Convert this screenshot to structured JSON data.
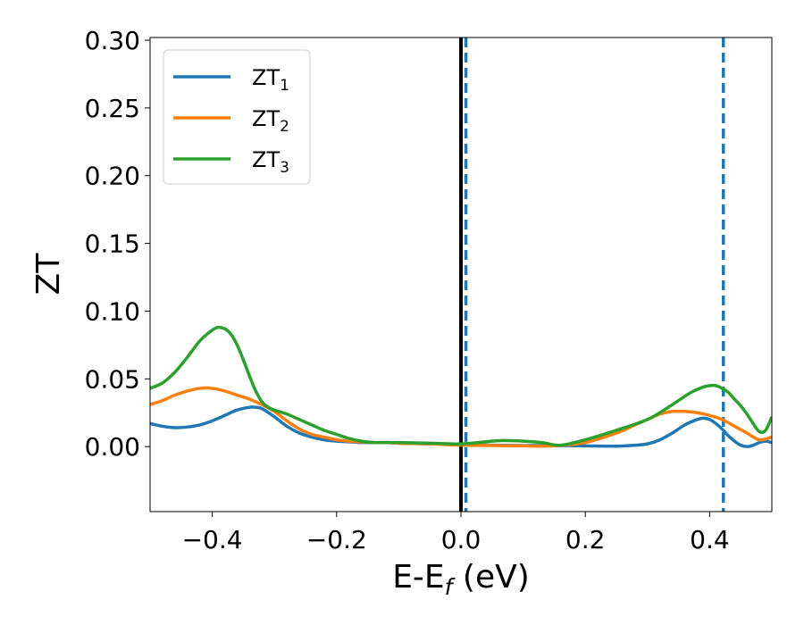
{
  "chart_data": {
    "type": "line",
    "xlabel": "E-E",
    "xlabel_sub": "f",
    "xlabel_unit": " (eV)",
    "ylabel": "ZT",
    "xlim": [
      -0.5,
      0.5
    ],
    "ylim": [
      -0.048,
      0.302
    ],
    "xticks": [
      -0.4,
      -0.2,
      0.0,
      0.2,
      0.4
    ],
    "xtick_labels": [
      "−0.4",
      "−0.2",
      "0.0",
      "0.2",
      "0.4"
    ],
    "yticks": [
      0.0,
      0.05,
      0.1,
      0.15,
      0.2,
      0.25,
      0.3
    ],
    "ytick_labels": [
      "0.00",
      "0.05",
      "0.10",
      "0.15",
      "0.20",
      "0.25",
      "0.30"
    ],
    "legend_position": "top-left",
    "vlines": [
      {
        "x": 0.0,
        "style": "solid",
        "color": "#000000"
      },
      {
        "x": 0.008,
        "style": "dashed",
        "color": "#1f77b4"
      },
      {
        "x": 0.422,
        "style": "dashed",
        "color": "#1f77b4"
      }
    ],
    "series": [
      {
        "name": "ZT",
        "sub": "1",
        "color": "#1f77b4",
        "x": [
          -0.5,
          -0.48,
          -0.46,
          -0.44,
          -0.42,
          -0.4,
          -0.38,
          -0.36,
          -0.34,
          -0.33,
          -0.32,
          -0.3,
          -0.28,
          -0.26,
          -0.24,
          -0.22,
          -0.2,
          -0.18,
          -0.16,
          -0.14,
          -0.12,
          -0.1,
          -0.05,
          0.0,
          0.05,
          0.1,
          0.15,
          0.2,
          0.25,
          0.28,
          0.3,
          0.32,
          0.34,
          0.36,
          0.38,
          0.39,
          0.4,
          0.41,
          0.42,
          0.43,
          0.44,
          0.45,
          0.46,
          0.47,
          0.48,
          0.49,
          0.5
        ],
        "y": [
          0.017,
          0.015,
          0.014,
          0.0145,
          0.016,
          0.019,
          0.023,
          0.027,
          0.029,
          0.029,
          0.028,
          0.022,
          0.015,
          0.01,
          0.007,
          0.005,
          0.004,
          0.0035,
          0.003,
          0.003,
          0.003,
          0.0025,
          0.002,
          0.0015,
          0.001,
          0.0008,
          0.0008,
          0.0005,
          0.0003,
          0.001,
          0.002,
          0.005,
          0.01,
          0.016,
          0.02,
          0.021,
          0.02,
          0.017,
          0.013,
          0.008,
          0.004,
          0.001,
          0.0,
          0.001,
          0.003,
          0.004,
          0.003
        ]
      },
      {
        "name": "ZT",
        "sub": "2",
        "color": "#ff7f0e",
        "x": [
          -0.5,
          -0.48,
          -0.46,
          -0.44,
          -0.42,
          -0.4,
          -0.38,
          -0.36,
          -0.34,
          -0.32,
          -0.3,
          -0.28,
          -0.26,
          -0.24,
          -0.22,
          -0.2,
          -0.18,
          -0.16,
          -0.14,
          -0.12,
          -0.1,
          -0.05,
          0.0,
          0.05,
          0.1,
          0.15,
          0.2,
          0.25,
          0.28,
          0.3,
          0.32,
          0.34,
          0.35,
          0.36,
          0.38,
          0.4,
          0.42,
          0.44,
          0.46,
          0.48,
          0.5
        ],
        "y": [
          0.031,
          0.034,
          0.038,
          0.041,
          0.043,
          0.043,
          0.041,
          0.038,
          0.035,
          0.031,
          0.026,
          0.019,
          0.013,
          0.009,
          0.007,
          0.005,
          0.004,
          0.0035,
          0.003,
          0.003,
          0.0025,
          0.002,
          0.001,
          0.0008,
          0.0005,
          0.0005,
          0.003,
          0.01,
          0.016,
          0.02,
          0.024,
          0.026,
          0.026,
          0.026,
          0.025,
          0.023,
          0.02,
          0.015,
          0.01,
          0.005,
          0.007
        ]
      },
      {
        "name": "ZT",
        "sub": "3",
        "color": "#2ca02c",
        "x": [
          -0.5,
          -0.48,
          -0.46,
          -0.44,
          -0.42,
          -0.4,
          -0.39,
          -0.38,
          -0.37,
          -0.36,
          -0.35,
          -0.34,
          -0.33,
          -0.32,
          -0.31,
          -0.3,
          -0.28,
          -0.26,
          -0.24,
          -0.22,
          -0.2,
          -0.18,
          -0.16,
          -0.14,
          -0.12,
          -0.1,
          -0.05,
          0.0,
          0.05,
          0.07,
          0.1,
          0.13,
          0.16,
          0.2,
          0.25,
          0.3,
          0.33,
          0.35,
          0.37,
          0.39,
          0.4,
          0.41,
          0.42,
          0.43,
          0.44,
          0.45,
          0.46,
          0.47,
          0.48,
          0.49,
          0.5
        ],
        "y": [
          0.043,
          0.047,
          0.055,
          0.066,
          0.078,
          0.086,
          0.088,
          0.087,
          0.083,
          0.075,
          0.064,
          0.052,
          0.041,
          0.033,
          0.029,
          0.027,
          0.024,
          0.02,
          0.016,
          0.012,
          0.009,
          0.006,
          0.004,
          0.003,
          0.003,
          0.003,
          0.0025,
          0.002,
          0.004,
          0.0045,
          0.004,
          0.003,
          0.001,
          0.005,
          0.012,
          0.02,
          0.028,
          0.034,
          0.04,
          0.044,
          0.045,
          0.045,
          0.043,
          0.04,
          0.035,
          0.03,
          0.024,
          0.017,
          0.011,
          0.012,
          0.022
        ]
      }
    ]
  }
}
